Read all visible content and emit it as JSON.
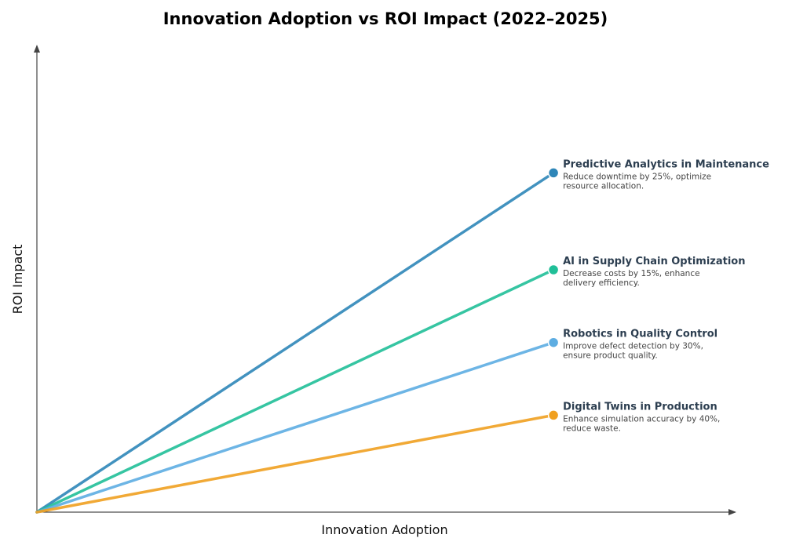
{
  "chart_data": {
    "type": "line",
    "title": "Innovation Adoption vs ROI Impact (2022–2025)",
    "xlabel": "Innovation Adoption",
    "ylabel": "ROI Impact",
    "xlim": [
      0,
      1
    ],
    "ylim": [
      0,
      1
    ],
    "grid": false,
    "legend": "none",
    "series": [
      {
        "name": "Predictive Analytics in Maintenance",
        "description": [
          "Reduce downtime by 25%, optimize",
          "resource allocation."
        ],
        "color": "#2e86b8",
        "x": [
          0,
          0.687
        ],
        "y": [
          0,
          0.7
        ]
      },
      {
        "name": "AI in Supply Chain Optimization",
        "description": [
          "Decrease costs by 15%, enhance",
          "delivery efficiency."
        ],
        "color": "#20bf98",
        "x": [
          0,
          0.687
        ],
        "y": [
          0,
          0.5
        ]
      },
      {
        "name": "Robotics in Quality Control",
        "description": [
          "Improve defect detection by 30%,",
          "ensure product quality."
        ],
        "color": "#5dade2",
        "x": [
          0,
          0.687
        ],
        "y": [
          0,
          0.35
        ]
      },
      {
        "name": "Digital Twins in Production",
        "description": [
          "Enhance simulation accuracy by 40%,",
          "reduce waste."
        ],
        "color": "#f0a020",
        "x": [
          0,
          0.687
        ],
        "y": [
          0,
          0.2
        ]
      }
    ]
  }
}
